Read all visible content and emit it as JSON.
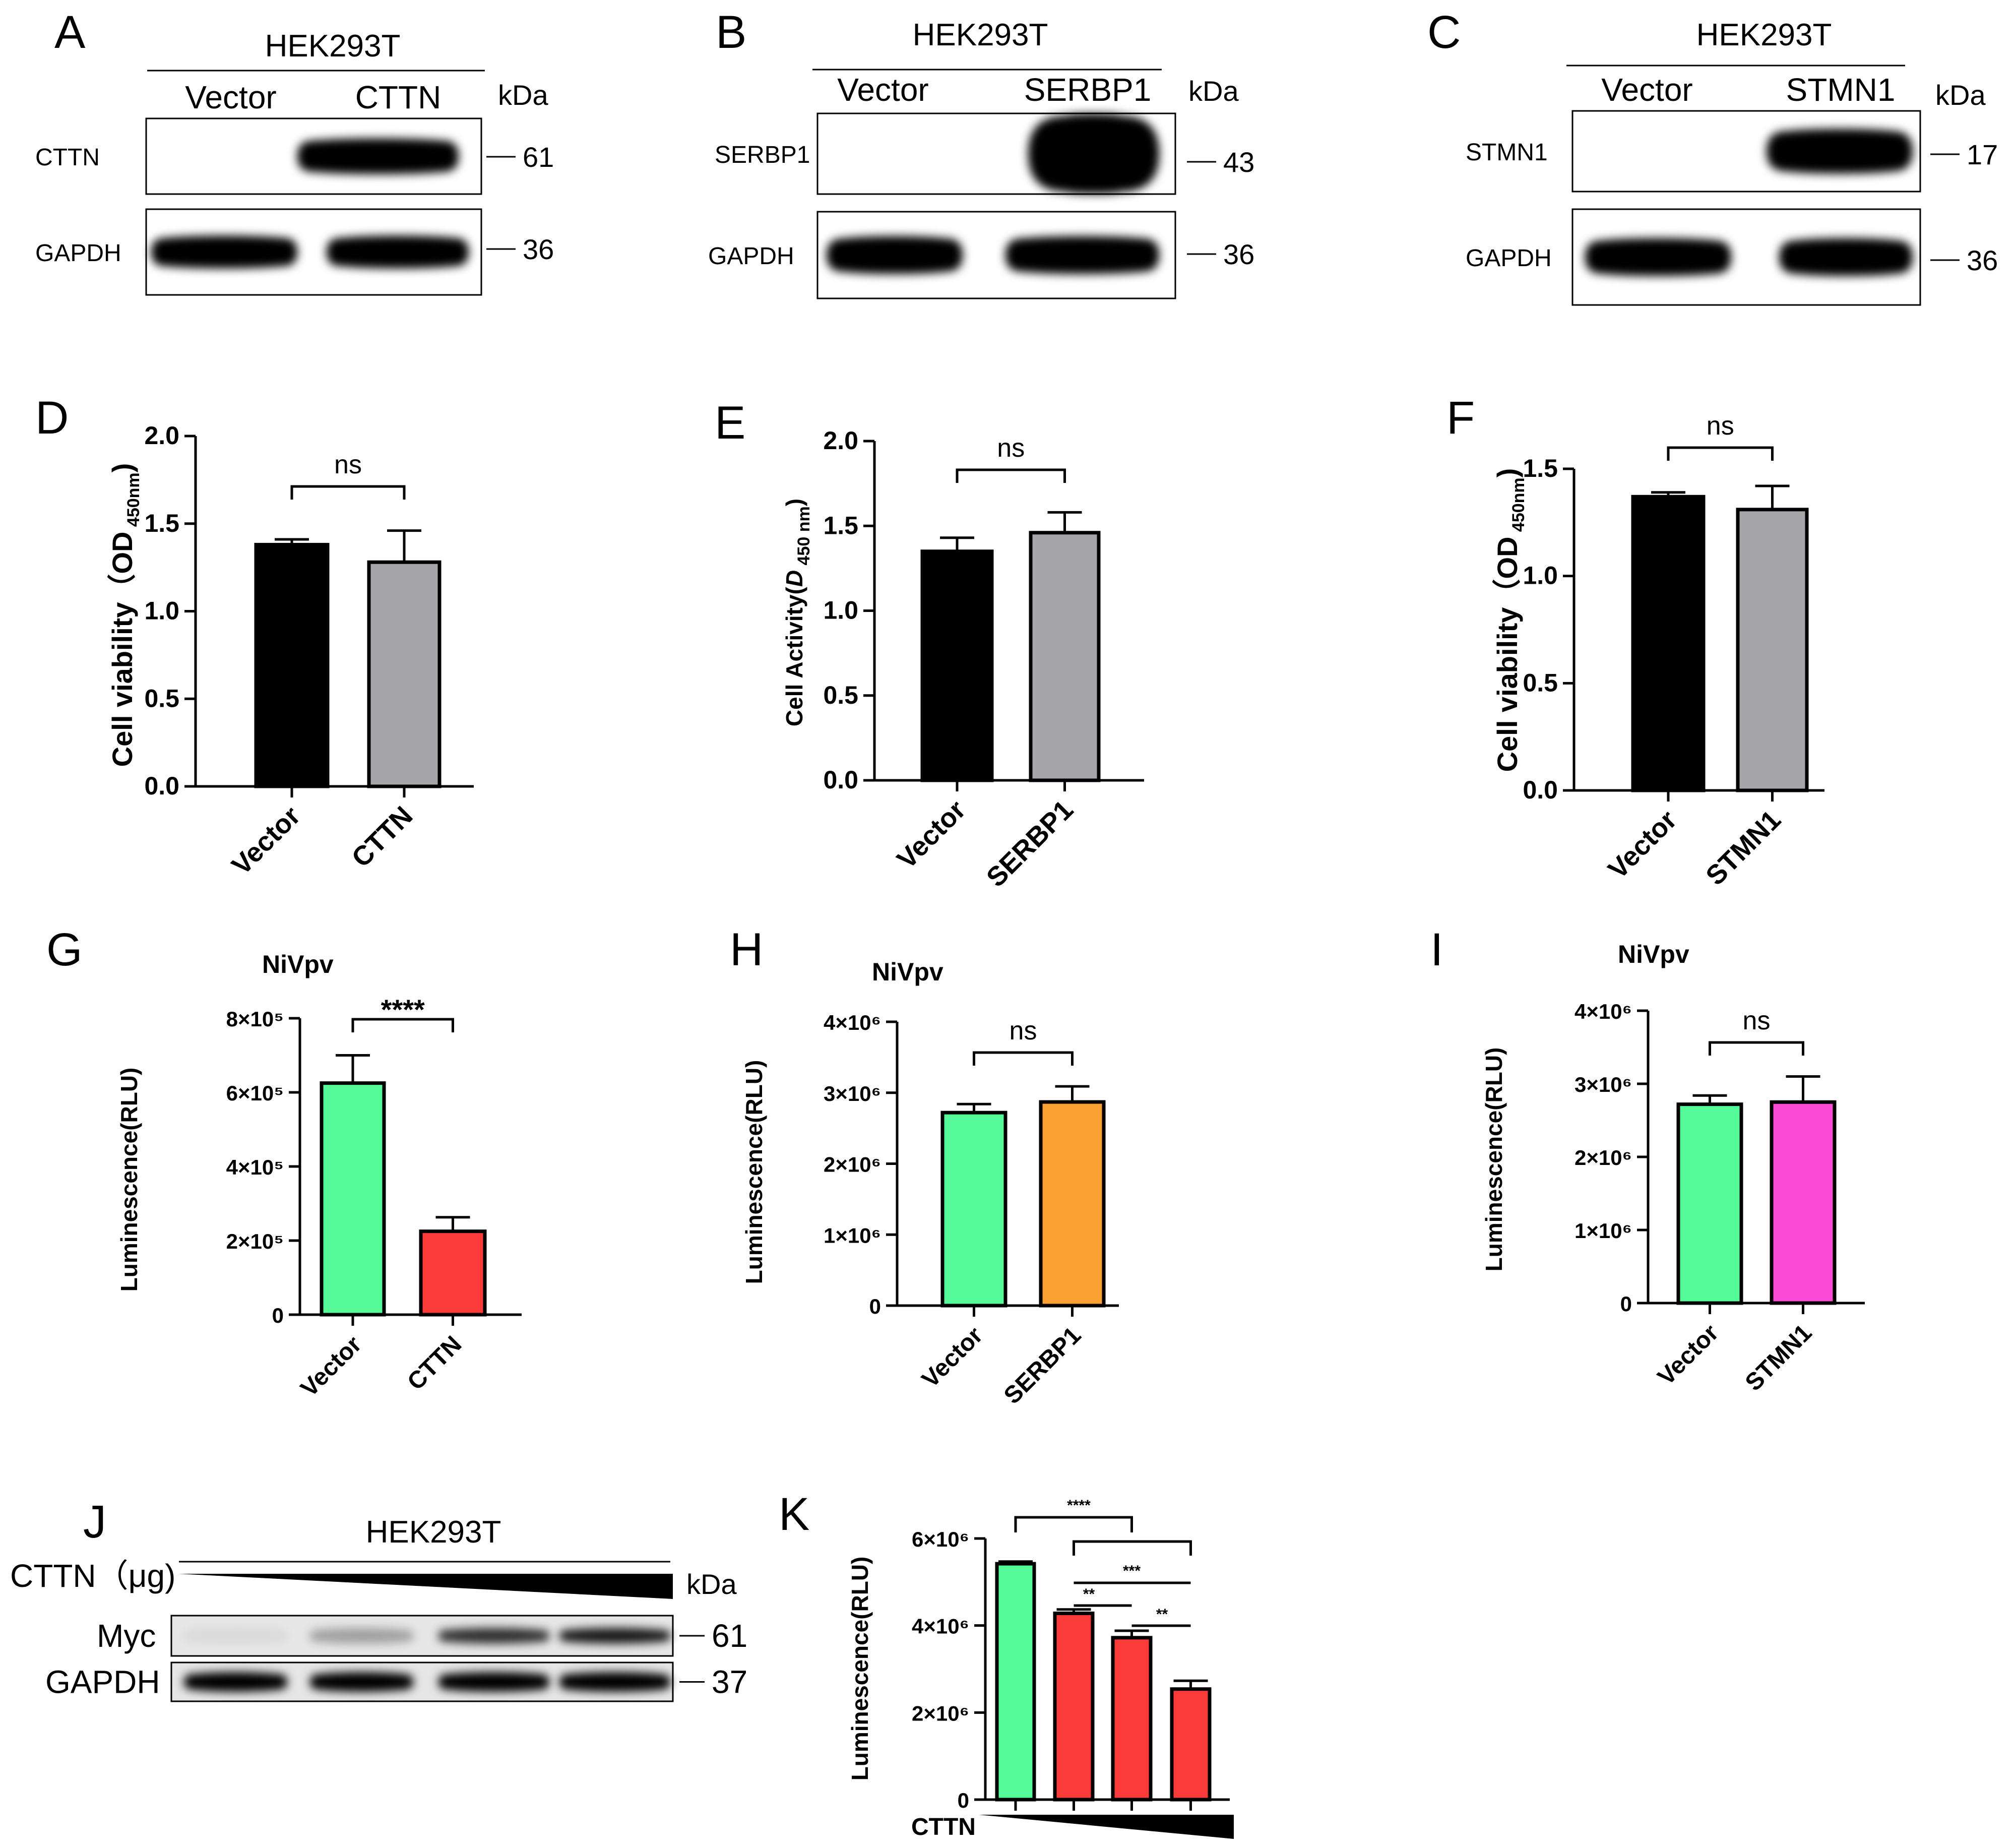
{
  "figure": {
    "panel_labels": [
      "A",
      "B",
      "C",
      "D",
      "E",
      "F",
      "G",
      "H",
      "I",
      "J",
      "K"
    ]
  },
  "blots": [
    {
      "id": "A",
      "cell_line": "HEK293T",
      "lanes": [
        "Vector",
        "CTTN"
      ],
      "kda_label": "kDa",
      "rows": [
        {
          "protein": "CTTN",
          "marker": "61",
          "band_intensity": [
            0,
            1
          ]
        },
        {
          "protein": "GAPDH",
          "marker": "36",
          "band_intensity": [
            1,
            1
          ]
        }
      ]
    },
    {
      "id": "B",
      "cell_line": "HEK293T",
      "lanes": [
        "Vector",
        "SERBP1"
      ],
      "kda_label": "kDa",
      "rows": [
        {
          "protein": "SERBP1",
          "marker": "43",
          "band_intensity": [
            0,
            1
          ]
        },
        {
          "protein": "GAPDH",
          "marker": "36",
          "band_intensity": [
            1,
            1
          ]
        }
      ]
    },
    {
      "id": "C",
      "cell_line": "HEK293T",
      "lanes": [
        "Vector",
        "STMN1"
      ],
      "kda_label": "kDa",
      "rows": [
        {
          "protein": "STMN1",
          "marker": "17",
          "band_intensity": [
            0,
            1
          ]
        },
        {
          "protein": "GAPDH",
          "marker": "36",
          "band_intensity": [
            1,
            1
          ]
        }
      ]
    },
    {
      "id": "J",
      "cell_line": "HEK293T",
      "dose_label": "CTTN（μg)",
      "kda_label": "kDa",
      "lane_count": 4,
      "rows": [
        {
          "protein": "Myc",
          "marker": "61",
          "band_intensity": [
            0.05,
            0.3,
            0.8,
            0.9
          ]
        },
        {
          "protein": "GAPDH",
          "marker": "37",
          "band_intensity": [
            1,
            1,
            1,
            1
          ]
        }
      ]
    }
  ],
  "chart_data": [
    {
      "id": "D",
      "type": "bar",
      "title": "",
      "ylabel_main": "Cell viability（OD",
      "ylabel_sub": "450nm",
      "ylim": [
        0,
        2.0
      ],
      "yticks": [
        "0.0",
        "0.5",
        "1.0",
        "1.5",
        "2.0"
      ],
      "categories": [
        "Vector",
        "CTTN"
      ],
      "values": [
        1.38,
        1.28
      ],
      "errors": [
        0.03,
        0.18
      ],
      "colors": [
        "#000000",
        "#a5a5aa"
      ],
      "significance": [
        {
          "from": 0,
          "to": 1,
          "label": "ns"
        }
      ]
    },
    {
      "id": "E",
      "type": "bar",
      "title": "",
      "ylabel_main": "Cell Activity(",
      "ylabel_italic": "D",
      "ylabel_sub": "450 nm",
      "ylim": [
        0,
        2.0
      ],
      "yticks": [
        "0.0",
        "0.5",
        "1.0",
        "1.5",
        "2.0"
      ],
      "categories": [
        "Vector",
        "SERBP1"
      ],
      "values": [
        1.35,
        1.46
      ],
      "errors": [
        0.08,
        0.12
      ],
      "colors": [
        "#000000",
        "#a5a5aa"
      ],
      "significance": [
        {
          "from": 0,
          "to": 1,
          "label": "ns"
        }
      ]
    },
    {
      "id": "F",
      "type": "bar",
      "title": "",
      "ylabel_main": "Cell viability（OD",
      "ylabel_sub": "450nm",
      "ylim": [
        0,
        1.5
      ],
      "yticks": [
        "0.0",
        "0.5",
        "1.0",
        "1.5"
      ],
      "categories": [
        "Vector",
        "STMN1"
      ],
      "values": [
        1.37,
        1.31
      ],
      "errors": [
        0.02,
        0.11
      ],
      "colors": [
        "#000000",
        "#a5a5aa"
      ],
      "significance": [
        {
          "from": 0,
          "to": 1,
          "label": "ns"
        }
      ]
    },
    {
      "id": "G",
      "type": "bar",
      "title": "NiVpv",
      "ylabel_main": "Luminescence(RLU)",
      "ylim": [
        0,
        800000
      ],
      "yticks": [
        "0",
        "2×10⁵",
        "4×10⁵",
        "6×10⁵",
        "8×10⁵"
      ],
      "categories": [
        "Vector",
        "CTTN"
      ],
      "values": [
        625000,
        225000
      ],
      "errors": [
        75000,
        38000
      ],
      "colors": [
        "#55fb99",
        "#fb3a3a"
      ],
      "significance": [
        {
          "from": 0,
          "to": 1,
          "label": "****"
        }
      ]
    },
    {
      "id": "H",
      "type": "bar",
      "title": "NiVpv",
      "ylabel_main": "Luminescence(RLU)",
      "ylim": [
        0,
        4000000
      ],
      "yticks": [
        "0",
        "1×10⁶",
        "2×10⁶",
        "3×10⁶",
        "4×10⁶"
      ],
      "categories": [
        "Vector",
        "SERBP1"
      ],
      "values": [
        2720000,
        2870000
      ],
      "errors": [
        120000,
        220000
      ],
      "colors": [
        "#55fb99",
        "#fba032"
      ],
      "significance": [
        {
          "from": 0,
          "to": 1,
          "label": "ns"
        }
      ]
    },
    {
      "id": "I",
      "type": "bar",
      "title": "NiVpv",
      "ylabel_main": "Luminescence(RLU)",
      "ylim": [
        0,
        4000000
      ],
      "yticks": [
        "0",
        "1×10⁶",
        "2×10⁶",
        "3×10⁶",
        "4×10⁶"
      ],
      "categories": [
        "Vector",
        "STMN1"
      ],
      "values": [
        2720000,
        2750000
      ],
      "errors": [
        120000,
        350000
      ],
      "colors": [
        "#55fb99",
        "#fb4ad6"
      ],
      "significance": [
        {
          "from": 0,
          "to": 1,
          "label": "ns"
        }
      ]
    },
    {
      "id": "K",
      "type": "bar",
      "title": "",
      "ylabel_main": "Luminescence(RLU)",
      "ylim": [
        0,
        6000000
      ],
      "yticks": [
        "0",
        "2×10⁶",
        "4×10⁶",
        "6×10⁶"
      ],
      "categories": [
        "",
        "",
        "",
        ""
      ],
      "xlabel": "CTTN",
      "values": [
        5420000,
        4280000,
        3720000,
        2540000
      ],
      "errors": [
        50000,
        90000,
        160000,
        190000
      ],
      "colors": [
        "#55fb99",
        "#fb3a3a",
        "#fb3a3a",
        "#fb3a3a"
      ],
      "significance": [
        {
          "from": 0,
          "to": 2,
          "label": "****"
        },
        {
          "from": 1,
          "to": 3,
          "label": "***"
        },
        {
          "from": 1,
          "to": 2,
          "label": "**"
        },
        {
          "from": 2,
          "to": 3,
          "label": "**"
        }
      ]
    }
  ]
}
